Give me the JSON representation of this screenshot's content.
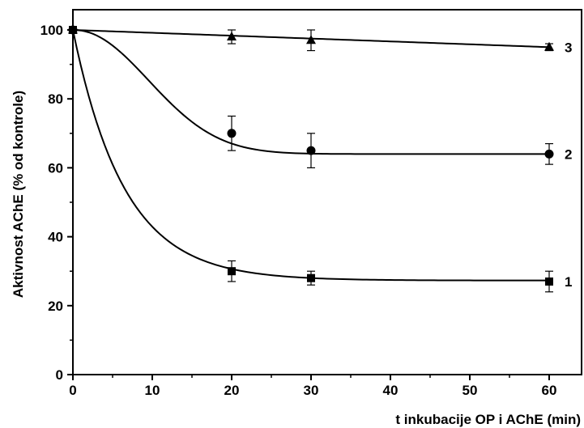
{
  "chart_data": {
    "type": "line",
    "title": "",
    "xlabel": "t inkubacije OP i AChE  (min)",
    "ylabel": "Aktivnost AChE (% od kontrole)",
    "xlim": [
      0,
      65
    ],
    "ylim": [
      0,
      105
    ],
    "x_ticks": [
      "0",
      "10",
      "20",
      "30",
      "40",
      "50",
      "60"
    ],
    "y_ticks": [
      "0",
      "20",
      "40",
      "60",
      "80",
      "100"
    ],
    "grid": false,
    "legend": "none",
    "series": [
      {
        "label": "1",
        "marker": "square",
        "x": [
          0,
          20,
          30,
          60
        ],
        "values": [
          100,
          30,
          28,
          27
        ],
        "errors": [
          0,
          3,
          2,
          3
        ]
      },
      {
        "label": "2",
        "marker": "circle",
        "x": [
          0,
          20,
          30,
          60
        ],
        "values": [
          100,
          70,
          65,
          64
        ],
        "errors": [
          0,
          5,
          5,
          3
        ]
      },
      {
        "label": "3",
        "marker": "triangle",
        "x": [
          0,
          20,
          30,
          60
        ],
        "values": [
          100,
          98,
          97,
          95
        ],
        "errors": [
          0,
          2,
          3,
          1
        ]
      }
    ]
  }
}
